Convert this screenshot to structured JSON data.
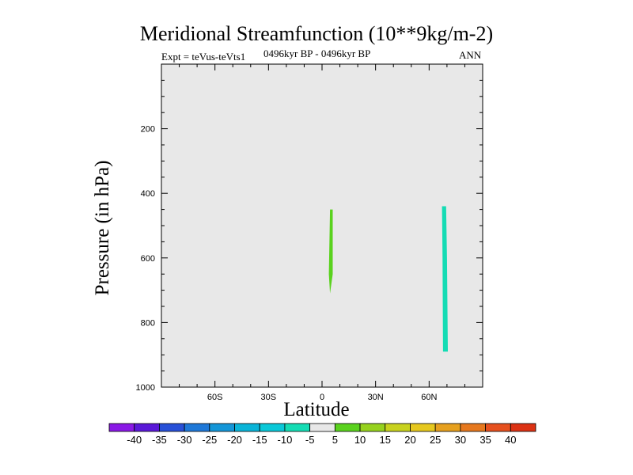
{
  "chart_data": {
    "type": "heatmap",
    "title": "Meridional Streamfunction (10**9kg/m-2)",
    "subtitle": "0496kyr BP - 0496kyr BP",
    "left_note": "Expt = teVus-teVts1",
    "right_note": "ANN",
    "xlabel": "Latitude",
    "ylabel": "Pressure (in hPa)",
    "xlim": [
      -90,
      90
    ],
    "ylim": [
      1000,
      0
    ],
    "x_ticks": [
      {
        "value": -60,
        "label": "60S"
      },
      {
        "value": -30,
        "label": "30S"
      },
      {
        "value": 0,
        "label": "0"
      },
      {
        "value": 30,
        "label": "30N"
      },
      {
        "value": 60,
        "label": "60N"
      }
    ],
    "y_ticks": [
      {
        "value": 200,
        "label": "200"
      },
      {
        "value": 400,
        "label": "400"
      },
      {
        "value": 600,
        "label": "600"
      },
      {
        "value": 800,
        "label": "800"
      },
      {
        "value": 1000,
        "label": "1000"
      }
    ],
    "background_color": "#e8e8e8",
    "colorbar": {
      "levels": [
        "-40",
        "-35",
        "-30",
        "-25",
        "-20",
        "-15",
        "-10",
        "-5",
        "5",
        "10",
        "15",
        "20",
        "25",
        "30",
        "35",
        "40"
      ],
      "colors": [
        "#8a19e6",
        "#5a19d8",
        "#2850d8",
        "#1e78d8",
        "#1496d8",
        "#0ab4d8",
        "#0ac8d8",
        "#14dcb4",
        "#e8e8e8",
        "#5ad21e",
        "#96d21e",
        "#c8d21e",
        "#e6c81e",
        "#e6a01e",
        "#e6781e",
        "#e6501e",
        "#dc3214"
      ]
    },
    "regions": [
      {
        "name": "positive-cell-5-10",
        "range": "5 to 10",
        "color": "#5ad21e",
        "outline": [
          [
            4.5,
            450
          ],
          [
            6.0,
            450
          ],
          [
            6.0,
            650
          ],
          [
            4.5,
            710
          ],
          [
            3.8,
            650
          ]
        ]
      },
      {
        "name": "negative-cell-minus10-minus5",
        "range": "-10 to -5",
        "color": "#14dcb4",
        "outline": [
          [
            67.2,
            440
          ],
          [
            69.5,
            440
          ],
          [
            70.0,
            600
          ],
          [
            70.5,
            890
          ],
          [
            67.8,
            890
          ],
          [
            67.5,
            600
          ]
        ]
      }
    ]
  }
}
